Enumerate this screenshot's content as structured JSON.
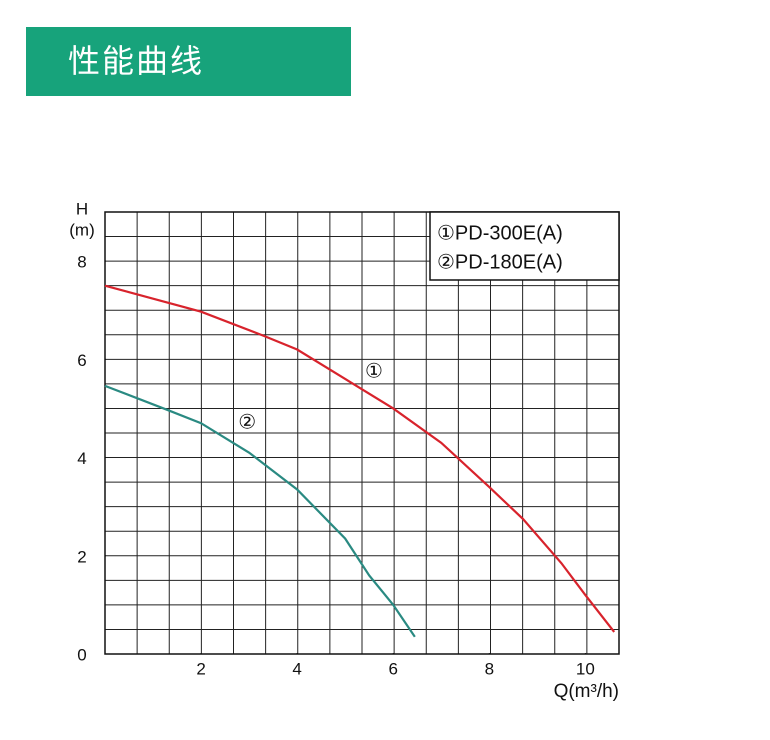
{
  "header": {
    "title": "性能曲线"
  },
  "chart_data": {
    "type": "line",
    "ylabel": [
      "H",
      "(m)"
    ],
    "xlabel": "Q(m³/h)",
    "xlim": [
      0,
      10.7
    ],
    "ylim": [
      0,
      9
    ],
    "xticks": [
      2,
      4,
      6,
      8,
      10
    ],
    "yticks": [
      0,
      2,
      4,
      6,
      8
    ],
    "grid": true,
    "series": [
      {
        "name": "①PD-300E(A)",
        "color": "#d8232c",
        "x": [
          0,
          2,
          3.3,
          4,
          5,
          6,
          7,
          8,
          8.7,
          9.5,
          10,
          10.6
        ],
        "values": [
          7.5,
          6.97,
          6.48,
          6.2,
          5.6,
          5.0,
          4.3,
          3.4,
          2.75,
          1.85,
          1.2,
          0.45
        ]
      },
      {
        "name": "②PD-180E(A)",
        "color": "#2a8a82",
        "x": [
          0,
          1.3,
          2,
          3,
          4,
          5,
          5.5,
          6,
          6.45
        ],
        "values": [
          5.46,
          4.97,
          4.7,
          4.1,
          3.35,
          2.35,
          1.6,
          1.0,
          0.35
        ]
      }
    ],
    "annotations": [
      {
        "text": "①",
        "x": 5.6,
        "y": 5.74
      },
      {
        "text": "②",
        "x": 2.96,
        "y": 4.7
      }
    ]
  }
}
